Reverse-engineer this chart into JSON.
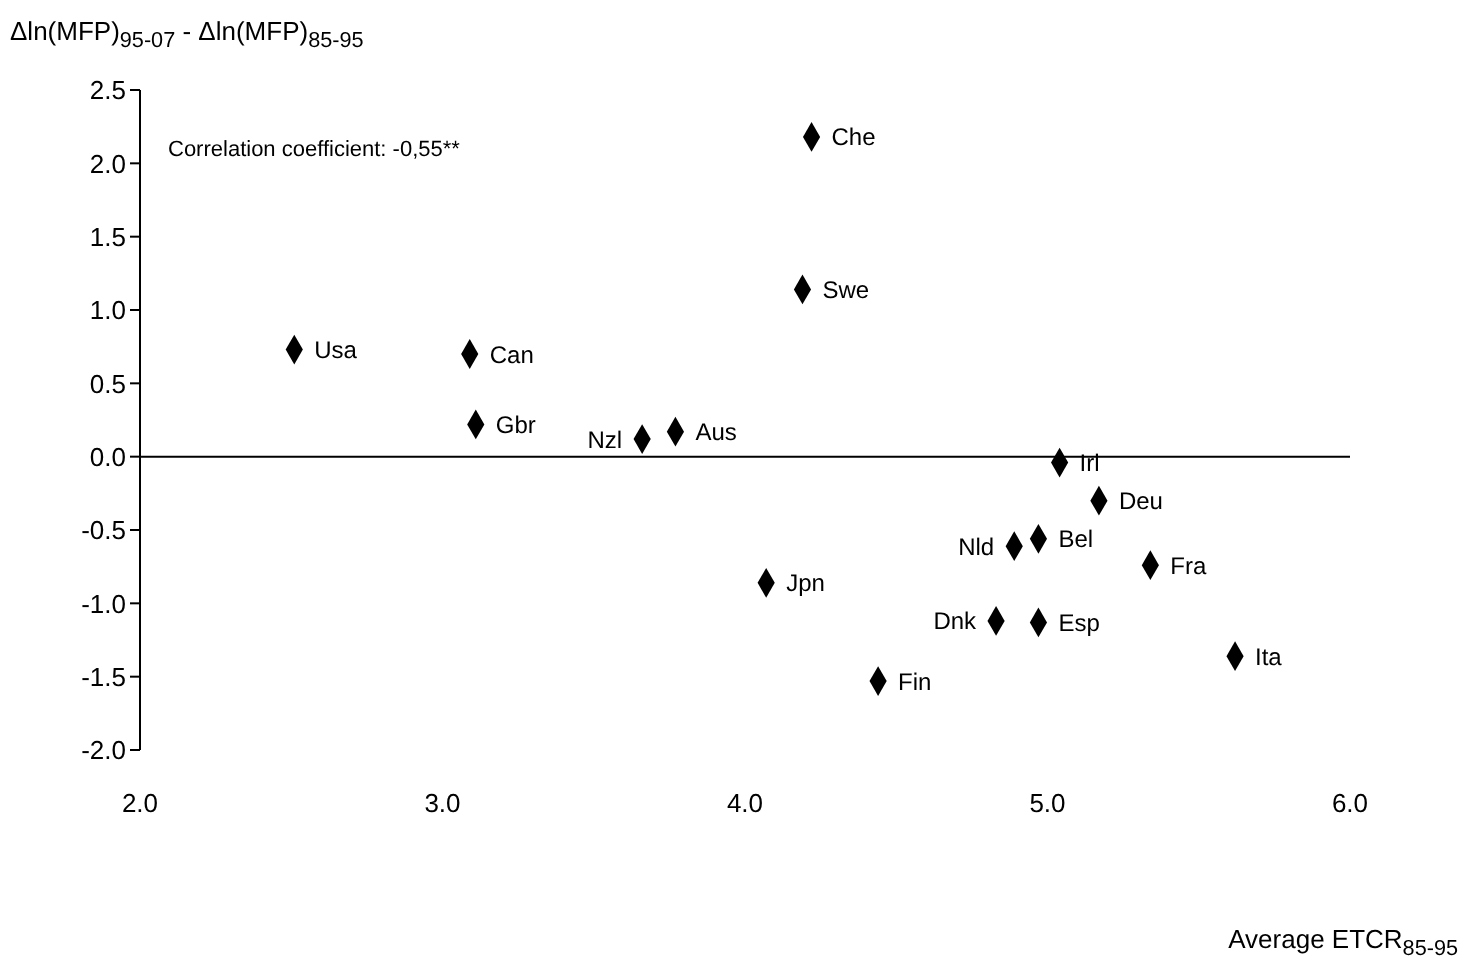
{
  "chart_data": {
    "type": "scatter",
    "xlabel": "Average ETCR$_{85-95}$",
    "ylabel": "Δln(MFP)$_{95-07}$ - Δln(MFP)$_{85-95}$",
    "x": [
      2.51,
      3.09,
      3.11,
      3.66,
      3.77,
      4.22,
      4.19,
      5.04,
      5.17,
      4.97,
      4.89,
      5.34,
      4.07,
      4.83,
      4.97,
      5.62,
      4.44
    ],
    "series": [
      {
        "color": "#000000",
        "values": [
          0.73,
          0.7,
          0.22,
          0.12,
          0.17,
          2.18,
          1.14,
          -0.04,
          -0.3,
          -0.56,
          -0.61,
          -0.74,
          -0.86,
          -1.12,
          -1.13,
          -1.36,
          -1.53
        ]
      }
    ],
    "xlim": [
      2.0,
      6.0
    ],
    "xticks": [
      {
        "value": 2,
        "label": "2.0"
      },
      {
        "value": 3,
        "label": "3.0"
      },
      {
        "value": 4,
        "label": "4.0"
      },
      {
        "value": 5,
        "label": "5.0"
      },
      {
        "value": 6,
        "label": "6.0"
      }
    ],
    "ylim": [
      -2.0,
      2.5
    ],
    "yticks": [
      {
        "value": -2,
        "label": "-2.0"
      },
      {
        "value": -1.5,
        "label": "-1.5"
      },
      {
        "value": -1,
        "label": "-1.0"
      },
      {
        "value": -0.5,
        "label": "-0.5"
      },
      {
        "value": 0,
        "label": "0.0"
      },
      {
        "value": 0.5,
        "label": "0.5"
      },
      {
        "value": 1,
        "label": "1.0"
      },
      {
        "value": 1.5,
        "label": "1.5"
      },
      {
        "value": 2,
        "label": "2.0"
      },
      {
        "value": 2.5,
        "label": "2.5"
      }
    ],
    "ref_lines": [
      {
        "axis": "y",
        "value": 0,
        "color": "#000000"
      }
    ],
    "grid": false,
    "legend": false,
    "marker": "diamond",
    "annotations": [
      "Correlation coefficient: -0,55**",
      {
        "text": "Usa",
        "x": 2.51,
        "y": 0.73
      },
      {
        "text": "Can",
        "x": 3.09,
        "y": 0.7
      },
      {
        "text": "Gbr",
        "x": 3.11,
        "y": 0.22
      },
      {
        "text": "Nzl",
        "x": 3.66,
        "y": 0.12
      },
      {
        "text": "Aus",
        "x": 3.77,
        "y": 0.17
      },
      {
        "text": "Che",
        "x": 4.22,
        "y": 2.18
      },
      {
        "text": "Swe",
        "x": 4.19,
        "y": 1.14
      },
      {
        "text": "Irl",
        "x": 5.04,
        "y": -0.04
      },
      {
        "text": "Deu",
        "x": 5.17,
        "y": -0.3
      },
      {
        "text": "Bel",
        "x": 4.97,
        "y": -0.56
      },
      {
        "text": "Nld",
        "x": 4.89,
        "y": -0.61
      },
      {
        "text": "Fra",
        "x": 5.34,
        "y": -0.74
      },
      {
        "text": "Jpn",
        "x": 4.07,
        "y": -0.86
      },
      {
        "text": "Dnk",
        "x": 4.83,
        "y": -1.12
      },
      {
        "text": "Esp",
        "x": 4.97,
        "y": -1.13
      },
      {
        "text": "Ita",
        "x": 5.62,
        "y": -1.36
      },
      {
        "text": "Fin",
        "x": 4.44,
        "y": -1.53
      }
    ]
  }
}
